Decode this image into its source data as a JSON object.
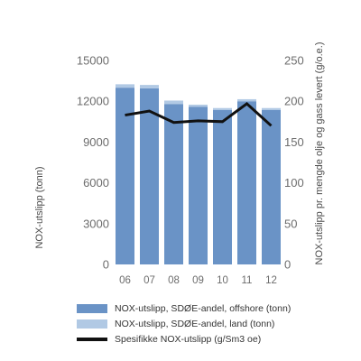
{
  "chart_data": {
    "type": "bar",
    "categories": [
      "06",
      "07",
      "08",
      "09",
      "10",
      "11",
      "12"
    ],
    "series": [
      {
        "name": "NOX-utslipp, SDØE-andel, offshore (tonn)",
        "kind": "bar",
        "axis": "left",
        "color": "#6a93c6",
        "values": [
          13000,
          12950,
          11800,
          11600,
          11350,
          12000,
          11350
        ]
      },
      {
        "name": "NOX-utslipp, SDØE-andel, land (tonn)",
        "kind": "bar-stack",
        "axis": "left",
        "color": "#b1c9e4",
        "values": [
          250,
          250,
          250,
          150,
          150,
          150,
          150
        ]
      },
      {
        "name": "Spesifikke NOX-utslipp (g/Sm3 oe)",
        "kind": "line",
        "axis": "right",
        "color": "#111111",
        "values": [
          183,
          188,
          174,
          176,
          175,
          197,
          170
        ]
      }
    ],
    "y_left": {
      "label": "NOX-utslipp (tonn)",
      "min": 0,
      "max": 15000,
      "ticks": [
        "0",
        "3000",
        "6000",
        "9000",
        "12000",
        "15000"
      ]
    },
    "y_right": {
      "label": "NOX-utslipp pr. mengde olje og gass levert (g/o.e.)",
      "min": 0,
      "max": 250,
      "ticks": [
        "0",
        "50",
        "100",
        "150",
        "200",
        "250"
      ]
    },
    "grid": false,
    "legend": "bottom"
  },
  "legend": {
    "items": [
      {
        "label": "NOX-utslipp, SDØE-andel, offshore (tonn)",
        "color": "#6a93c6",
        "shape": "bar"
      },
      {
        "label": "NOX-utslipp, SDØE-andel, land (tonn)",
        "color": "#b1c9e4",
        "shape": "bar"
      },
      {
        "label": "Spesifikke NOX-utslipp (g/Sm3 oe)",
        "color": "#111111",
        "shape": "line"
      }
    ]
  }
}
